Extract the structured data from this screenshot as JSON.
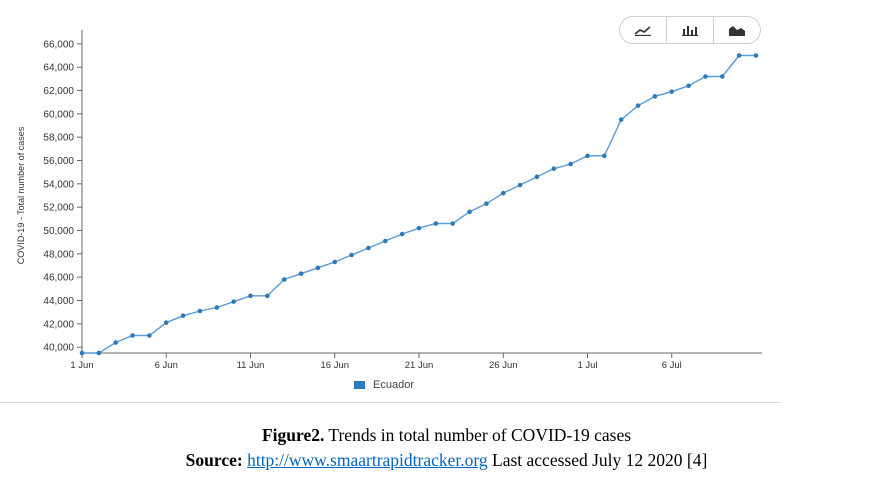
{
  "toolbar": {
    "buttons": [
      {
        "icon": "line-chart-icon"
      },
      {
        "icon": "bar-chart-icon"
      },
      {
        "icon": "area-chart-icon"
      }
    ]
  },
  "chart_data": {
    "type": "line",
    "ylabel": "COVID-19 - Total number of cases",
    "xlabel": "",
    "ylim": [
      39500,
      66500
    ],
    "yticks": [
      40000,
      42000,
      44000,
      46000,
      48000,
      50000,
      52000,
      54000,
      56000,
      58000,
      60000,
      62000,
      64000,
      66000
    ],
    "ytick_labels": [
      "40,000",
      "42,000",
      "44,000",
      "46,000",
      "48,000",
      "50,000",
      "52,000",
      "54,000",
      "56,000",
      "58,000",
      "60,000",
      "62,000",
      "64,000",
      "66,000"
    ],
    "xtick_labels": [
      {
        "day": 0,
        "label": "1 Jun"
      },
      {
        "day": 5,
        "label": "6 Jun"
      },
      {
        "day": 10,
        "label": "11 Jun"
      },
      {
        "day": 15,
        "label": "16 Jun"
      },
      {
        "day": 20,
        "label": "21 Jun"
      },
      {
        "day": 25,
        "label": "26 Jun"
      },
      {
        "day": 30,
        "label": "1 Jul"
      },
      {
        "day": 35,
        "label": "6 Jul"
      }
    ],
    "x": [
      "1 Jun",
      "2 Jun",
      "3 Jun",
      "4 Jun",
      "5 Jun",
      "6 Jun",
      "7 Jun",
      "8 Jun",
      "9 Jun",
      "10 Jun",
      "11 Jun",
      "12 Jun",
      "13 Jun",
      "14 Jun",
      "15 Jun",
      "16 Jun",
      "17 Jun",
      "18 Jun",
      "19 Jun",
      "20 Jun",
      "21 Jun",
      "22 Jun",
      "23 Jun",
      "24 Jun",
      "25 Jun",
      "26 Jun",
      "27 Jun",
      "28 Jun",
      "29 Jun",
      "30 Jun",
      "1 Jul",
      "2 Jul",
      "3 Jul",
      "4 Jul",
      "5 Jul",
      "6 Jul",
      "7 Jul",
      "8 Jul",
      "9 Jul",
      "10 Jul",
      "11 Jul"
    ],
    "series": [
      {
        "name": "Ecuador",
        "color": "#2b7bba",
        "values": [
          39100,
          39100,
          40400,
          41000,
          41000,
          42100,
          42700,
          43100,
          43400,
          43900,
          44400,
          44400,
          45800,
          46300,
          46800,
          47300,
          47900,
          48500,
          49100,
          49700,
          50200,
          50600,
          50600,
          51600,
          52300,
          53200,
          53900,
          54600,
          55300,
          55700,
          56400,
          56400,
          59500,
          60700,
          61500,
          61900,
          62400,
          63200,
          63200,
          65000,
          65000
        ]
      }
    ],
    "grid": false,
    "legend": "bottom-center"
  },
  "caption": {
    "figure_label": "Figure2.",
    "figure_text": " Trends in total number of COVID-19 cases",
    "source_label": "Source:",
    "source_link": "http://www.smaartrapidtracker.org",
    "source_text": " Last accessed July 12 2020 [4]"
  }
}
